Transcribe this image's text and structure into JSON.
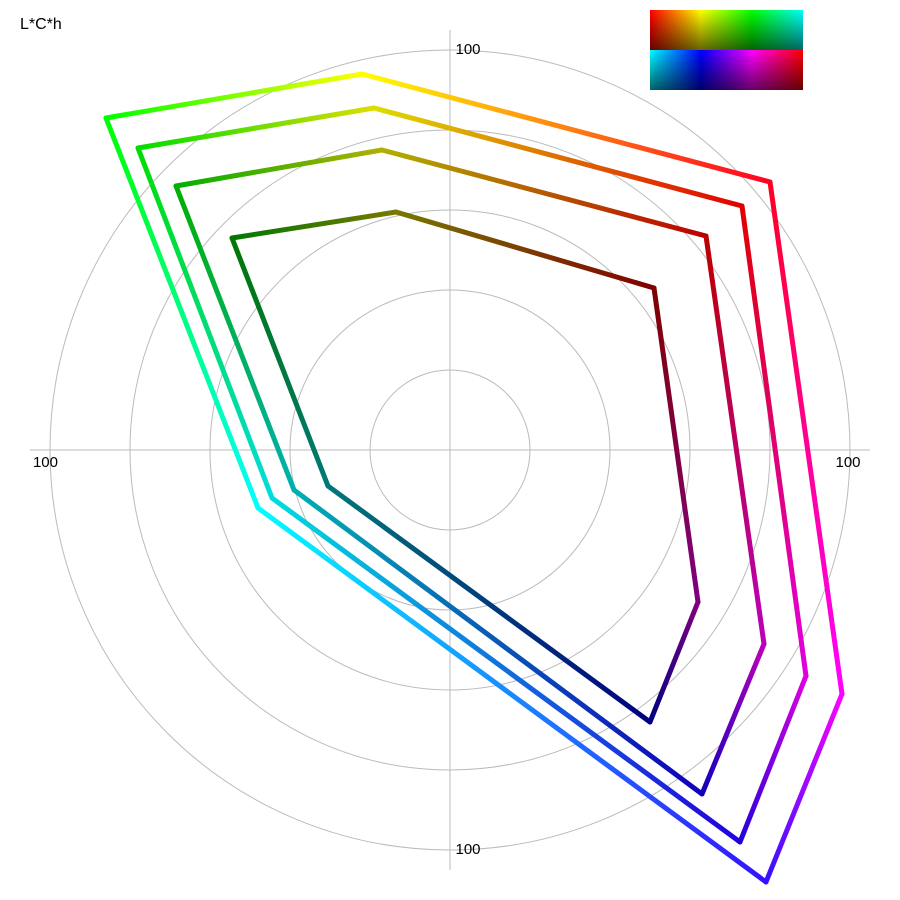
{
  "chart_data": {
    "type": "polar",
    "title": "L*C*h",
    "rlim": [
      0,
      100
    ],
    "rticks": [
      20,
      40,
      60,
      80,
      100
    ],
    "series": [
      {
        "x": [
          80,
          98,
          79,
          -48,
          -86,
          -22
        ],
        "y": [
          67,
          -61,
          -108,
          -14.5,
          83,
          94
        ],
        "colors": [
          "#ff0022",
          "#ff00ff",
          "#3311ff",
          "#00ffff",
          "#00ff00",
          "#ffff00"
        ]
      },
      {
        "x": [
          73,
          89,
          72.5,
          -44.5,
          -78,
          -19
        ],
        "y": [
          61,
          -56.5,
          -98,
          -12,
          75.5,
          85.5
        ],
        "colors": [
          "#e00000",
          "#e000e0",
          "#2200dd",
          "#00dddd",
          "#00dd00",
          "#dddd00"
        ]
      },
      {
        "x": [
          64,
          78.5,
          63,
          -39,
          -68.5,
          -17
        ],
        "y": [
          53.5,
          -48.5,
          -86,
          -10,
          66,
          75
        ],
        "colors": [
          "#bb0000",
          "#bb00bb",
          "#1100bb",
          "#00b0b0",
          "#00b000",
          "#b0b000"
        ]
      },
      {
        "x": [
          51,
          62,
          50,
          -30.5,
          -54.5,
          -13.5
        ],
        "y": [
          40.5,
          -38,
          -68,
          -9,
          53,
          59.5
        ],
        "colors": [
          "#800000",
          "#800080",
          "#000080",
          "#007878",
          "#007800",
          "#787800"
        ]
      }
    ]
  }
}
